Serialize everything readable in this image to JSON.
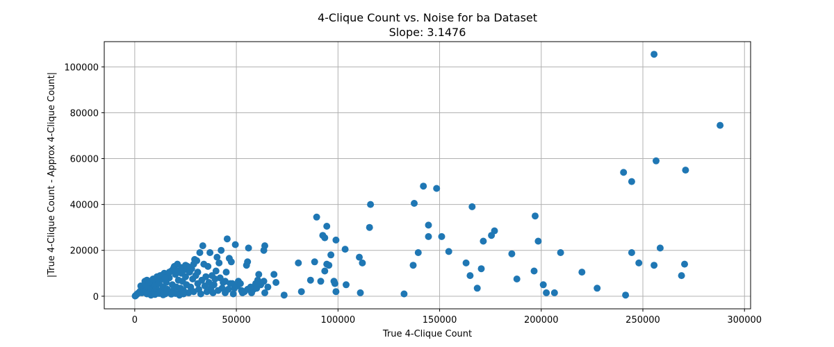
{
  "chart_data": {
    "type": "scatter",
    "title": "4-Clique Count vs. Noise for ba Dataset",
    "subtitle": "Slope: 3.1476",
    "xlabel": "True 4-Clique Count",
    "ylabel": "|True 4-Clique Count - Approx 4-Clique Count|",
    "xlim": [
      -15000,
      303000
    ],
    "ylim": [
      -5500,
      111000
    ],
    "xticks": [
      0,
      50000,
      100000,
      150000,
      200000,
      250000,
      300000
    ],
    "xtick_labels": [
      "0",
      "50000",
      "100000",
      "150000",
      "200000",
      "250000",
      "300000"
    ],
    "yticks": [
      0,
      20000,
      40000,
      60000,
      80000,
      100000
    ],
    "ytick_labels": [
      "0",
      "20000",
      "40000",
      "60000",
      "80000",
      "100000"
    ],
    "grid": true,
    "point_color": "#1f77b4",
    "points": [
      [
        255500,
        105500
      ],
      [
        288000,
        74500
      ],
      [
        256500,
        59000
      ],
      [
        271000,
        55000
      ],
      [
        240500,
        54000
      ],
      [
        244500,
        50000
      ],
      [
        142000,
        48000
      ],
      [
        148500,
        47000
      ],
      [
        116000,
        40000
      ],
      [
        137500,
        40500
      ],
      [
        166000,
        39000
      ],
      [
        89500,
        34500
      ],
      [
        197000,
        35000
      ],
      [
        144500,
        31000
      ],
      [
        94500,
        30500
      ],
      [
        115500,
        30000
      ],
      [
        177000,
        28500
      ],
      [
        175500,
        26500
      ],
      [
        92500,
        26500
      ],
      [
        93500,
        25500
      ],
      [
        144500,
        26000
      ],
      [
        151000,
        26000
      ],
      [
        99000,
        24500
      ],
      [
        171500,
        24000
      ],
      [
        198500,
        24000
      ],
      [
        103500,
        20500
      ],
      [
        154500,
        19500
      ],
      [
        139500,
        19000
      ],
      [
        209500,
        19000
      ],
      [
        244500,
        19000
      ],
      [
        258500,
        21000
      ],
      [
        185500,
        18500
      ],
      [
        110500,
        17000
      ],
      [
        96500,
        18000
      ],
      [
        80500,
        14500
      ],
      [
        88500,
        15000
      ],
      [
        94500,
        14000
      ],
      [
        112000,
        14500
      ],
      [
        95500,
        13500
      ],
      [
        137000,
        13500
      ],
      [
        163000,
        14500
      ],
      [
        248000,
        14500
      ],
      [
        255500,
        13500
      ],
      [
        270500,
        14000
      ],
      [
        170500,
        12000
      ],
      [
        196500,
        11000
      ],
      [
        93500,
        11000
      ],
      [
        220000,
        10500
      ],
      [
        269000,
        9000
      ],
      [
        165000,
        9000
      ],
      [
        86500,
        7000
      ],
      [
        91500,
        6500
      ],
      [
        98000,
        6500
      ],
      [
        98500,
        5500
      ],
      [
        104000,
        5000
      ],
      [
        188000,
        7500
      ],
      [
        201000,
        5000
      ],
      [
        168500,
        3500
      ],
      [
        227500,
        3500
      ],
      [
        82000,
        2000
      ],
      [
        99000,
        2000
      ],
      [
        111000,
        1500
      ],
      [
        202500,
        1500
      ],
      [
        206500,
        1500
      ],
      [
        132500,
        1000
      ],
      [
        241500,
        500
      ],
      [
        73500,
        500
      ],
      [
        64000,
        22000
      ],
      [
        63500,
        20000
      ],
      [
        56000,
        21000
      ],
      [
        49500,
        22500
      ],
      [
        45500,
        25000
      ],
      [
        42500,
        20000
      ],
      [
        37000,
        19000
      ],
      [
        33500,
        22000
      ],
      [
        55500,
        15000
      ],
      [
        55000,
        13500
      ],
      [
        47500,
        15000
      ],
      [
        46500,
        16500
      ],
      [
        41500,
        14500
      ],
      [
        40500,
        17000
      ],
      [
        68500,
        9500
      ],
      [
        69500,
        6000
      ],
      [
        61000,
        9500
      ],
      [
        60500,
        7000
      ],
      [
        62000,
        5000
      ],
      [
        63500,
        6500
      ],
      [
        65500,
        4000
      ],
      [
        58500,
        3000
      ],
      [
        52500,
        2500
      ],
      [
        53000,
        1500
      ],
      [
        55500,
        3000
      ],
      [
        57500,
        1500
      ],
      [
        64000,
        1500
      ],
      [
        50500,
        4500
      ],
      [
        51000,
        6500
      ],
      [
        47000,
        5500
      ],
      [
        45000,
        10500
      ],
      [
        44500,
        6500
      ],
      [
        43000,
        3500
      ],
      [
        44500,
        1500
      ],
      [
        40000,
        11000
      ],
      [
        36000,
        13000
      ],
      [
        34000,
        14000
      ],
      [
        32000,
        19000
      ],
      [
        29500,
        16000
      ],
      [
        30500,
        15500
      ],
      [
        28000,
        12000
      ],
      [
        26000,
        13000
      ],
      [
        24500,
        11500
      ],
      [
        23000,
        10000
      ],
      [
        21000,
        14000
      ],
      [
        19500,
        13000
      ],
      [
        18000,
        11000
      ],
      [
        16500,
        9500
      ],
      [
        14500,
        10000
      ],
      [
        12500,
        9000
      ],
      [
        11000,
        6500
      ],
      [
        9000,
        5500
      ],
      [
        7500,
        4500
      ],
      [
        6000,
        7000
      ],
      [
        5000,
        6500
      ],
      [
        4000,
        3500
      ],
      [
        3000,
        2500
      ],
      [
        2000,
        1500
      ],
      [
        1000,
        800
      ],
      [
        500,
        300
      ],
      [
        200,
        100
      ],
      [
        1500,
        1200
      ],
      [
        2500,
        2000
      ],
      [
        3500,
        1500
      ],
      [
        4500,
        3000
      ],
      [
        5500,
        2500
      ],
      [
        6500,
        4000
      ],
      [
        7000,
        1500
      ],
      [
        8000,
        3000
      ],
      [
        8500,
        6500
      ],
      [
        9500,
        2000
      ],
      [
        10000,
        4500
      ],
      [
        10500,
        3500
      ],
      [
        11500,
        1500
      ],
      [
        12000,
        5500
      ],
      [
        13000,
        2500
      ],
      [
        13500,
        7500
      ],
      [
        14000,
        4000
      ],
      [
        15000,
        1000
      ],
      [
        15500,
        6000
      ],
      [
        16000,
        3000
      ],
      [
        17000,
        8000
      ],
      [
        17500,
        1500
      ],
      [
        18500,
        5000
      ],
      [
        19000,
        2500
      ],
      [
        20000,
        9500
      ],
      [
        20500,
        4000
      ],
      [
        21500,
        7000
      ],
      [
        22000,
        1500
      ],
      [
        22500,
        3500
      ],
      [
        23500,
        6500
      ],
      [
        24000,
        2500
      ],
      [
        25000,
        8500
      ],
      [
        25500,
        5000
      ],
      [
        26500,
        1500
      ],
      [
        27000,
        10500
      ],
      [
        27500,
        4000
      ],
      [
        28500,
        7500
      ],
      [
        29000,
        2000
      ],
      [
        30000,
        9000
      ],
      [
        31000,
        5500
      ],
      [
        31500,
        3000
      ],
      [
        32500,
        1000
      ],
      [
        33000,
        7000
      ],
      [
        34500,
        4500
      ],
      [
        35000,
        8500
      ],
      [
        35500,
        2000
      ],
      [
        36500,
        6000
      ],
      [
        37500,
        3500
      ],
      [
        38000,
        9000
      ],
      [
        38500,
        1500
      ],
      [
        39000,
        5000
      ],
      [
        39500,
        7500
      ],
      [
        41000,
        2500
      ],
      [
        42000,
        8000
      ],
      [
        43500,
        6000
      ],
      [
        46000,
        3000
      ],
      [
        48000,
        5500
      ],
      [
        48500,
        1000
      ],
      [
        49000,
        3500
      ],
      [
        52000,
        5500
      ],
      [
        54000,
        2000
      ],
      [
        57000,
        4000
      ],
      [
        59500,
        5500
      ],
      [
        60000,
        3500
      ],
      [
        6000,
        1000
      ],
      [
        8000,
        500
      ],
      [
        10000,
        800
      ],
      [
        12000,
        1200
      ],
      [
        14000,
        600
      ],
      [
        16000,
        1800
      ],
      [
        18000,
        900
      ],
      [
        20000,
        1200
      ],
      [
        22000,
        500
      ],
      [
        24000,
        1000
      ],
      [
        3000,
        4500
      ],
      [
        5000,
        5500
      ],
      [
        7000,
        6000
      ],
      [
        9000,
        7500
      ],
      [
        11000,
        8500
      ],
      [
        13000,
        9000
      ],
      [
        15000,
        8000
      ],
      [
        17000,
        10500
      ],
      [
        19000,
        12000
      ],
      [
        21000,
        11000
      ],
      [
        23000,
        12500
      ],
      [
        25000,
        13500
      ],
      [
        27000,
        12500
      ],
      [
        29000,
        14000
      ],
      [
        31000,
        10500
      ]
    ]
  }
}
